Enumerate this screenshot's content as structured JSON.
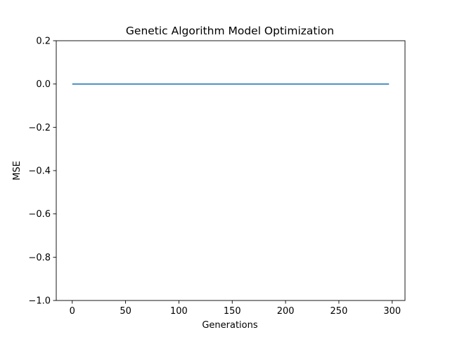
{
  "chart_data": {
    "type": "line",
    "title": "Genetic Algorithm Model Optimization",
    "xlabel": "Generations",
    "ylabel": "MSE",
    "xlim": [
      -15,
      312
    ],
    "ylim": [
      -1.0,
      0.2
    ],
    "xticks": [
      0,
      50,
      100,
      150,
      200,
      250,
      300
    ],
    "yticks": [
      -1.0,
      -0.8,
      -0.6,
      -0.4,
      -0.2,
      0.0,
      0.2
    ],
    "xtick_labels": [
      "0",
      "50",
      "100",
      "150",
      "200",
      "250",
      "300"
    ],
    "ytick_labels": [
      "−1.0",
      "−0.8",
      "−0.6",
      "−0.4",
      "−0.2",
      "0.0",
      "0.2"
    ],
    "grid": false,
    "series": [
      {
        "color": "#1f77b4",
        "x": [
          0,
          297
        ],
        "y": [
          0.0,
          0.0
        ]
      }
    ]
  }
}
